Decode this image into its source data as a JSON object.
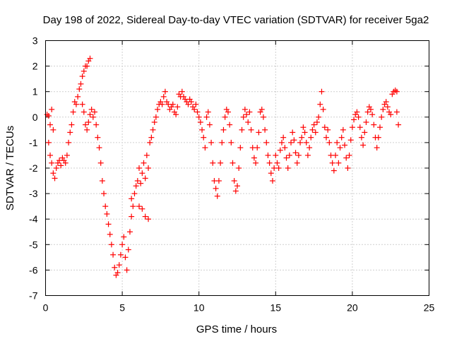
{
  "chart_data": {
    "type": "scatter",
    "title": "Day 198 of 2022, Sidereal Day-to-day VTEC variation (SDTVAR) for receiver 5ga2",
    "xlabel": "GPS time / hours",
    "ylabel": "SDTVAR / TECUs",
    "xlim": [
      0,
      25
    ],
    "ylim": [
      -7,
      3
    ],
    "x_ticks": [
      0,
      5,
      10,
      15,
      20,
      25
    ],
    "y_ticks": [
      -7,
      -6,
      -5,
      -4,
      -3,
      -2,
      -1,
      0,
      1,
      2,
      3
    ],
    "grid": true,
    "marker": "+",
    "color": "#ff0000",
    "series": [
      {
        "name": "SDTVAR",
        "points": [
          [
            0.1,
            0.1
          ],
          [
            0.2,
            0.05
          ],
          [
            0.3,
            -0.3
          ],
          [
            0.4,
            0.3
          ],
          [
            0.5,
            -0.5
          ],
          [
            0.2,
            -1.0
          ],
          [
            0.3,
            -1.5
          ],
          [
            0.4,
            -1.8
          ],
          [
            0.5,
            -2.2
          ],
          [
            0.6,
            -2.4
          ],
          [
            0.7,
            -2.0
          ],
          [
            0.8,
            -1.8
          ],
          [
            0.9,
            -1.7
          ],
          [
            1.0,
            -1.9
          ],
          [
            1.1,
            -1.6
          ],
          [
            1.2,
            -1.7
          ],
          [
            1.3,
            -1.8
          ],
          [
            1.4,
            -1.5
          ],
          [
            1.5,
            -1.0
          ],
          [
            1.6,
            -0.6
          ],
          [
            1.7,
            -0.3
          ],
          [
            1.8,
            0.2
          ],
          [
            1.9,
            0.6
          ],
          [
            2.0,
            0.5
          ],
          [
            2.1,
            0.8
          ],
          [
            2.2,
            1.1
          ],
          [
            2.3,
            1.3
          ],
          [
            2.4,
            1.6
          ],
          [
            2.5,
            1.8
          ],
          [
            2.6,
            2.0
          ],
          [
            2.7,
            2.0
          ],
          [
            2.8,
            2.2
          ],
          [
            2.9,
            2.3
          ],
          [
            2.4,
            0.5
          ],
          [
            2.5,
            0.2
          ],
          [
            2.6,
            -0.3
          ],
          [
            2.7,
            -0.5
          ],
          [
            2.8,
            -0.2
          ],
          [
            2.9,
            0.1
          ],
          [
            3.0,
            0.3
          ],
          [
            3.1,
            0.0
          ],
          [
            3.2,
            0.2
          ],
          [
            3.3,
            -0.3
          ],
          [
            3.4,
            -0.8
          ],
          [
            3.5,
            -1.2
          ],
          [
            3.6,
            -1.8
          ],
          [
            3.7,
            -2.5
          ],
          [
            3.8,
            -3.0
          ],
          [
            3.9,
            -3.5
          ],
          [
            4.0,
            -3.8
          ],
          [
            4.1,
            -4.2
          ],
          [
            4.2,
            -4.6
          ],
          [
            4.3,
            -5.0
          ],
          [
            4.4,
            -5.4
          ],
          [
            4.5,
            -5.9
          ],
          [
            4.6,
            -6.2
          ],
          [
            4.7,
            -6.1
          ],
          [
            4.8,
            -5.8
          ],
          [
            4.9,
            -5.4
          ],
          [
            5.0,
            -5.0
          ],
          [
            5.1,
            -4.7
          ],
          [
            5.2,
            -5.5
          ],
          [
            5.3,
            -6.0
          ],
          [
            5.4,
            -5.2
          ],
          [
            5.5,
            -4.5
          ],
          [
            5.6,
            -3.9
          ],
          [
            5.6,
            -3.2
          ],
          [
            5.7,
            -3.5
          ],
          [
            5.8,
            -3.0
          ],
          [
            5.9,
            -2.7
          ],
          [
            6.0,
            -2.5
          ],
          [
            6.1,
            -2.0
          ],
          [
            6.1,
            -3.5
          ],
          [
            6.2,
            -2.6
          ],
          [
            6.3,
            -2.2
          ],
          [
            6.3,
            -3.6
          ],
          [
            6.4,
            -1.8
          ],
          [
            6.5,
            -2.4
          ],
          [
            6.5,
            -3.9
          ],
          [
            6.6,
            -1.5
          ],
          [
            6.7,
            -2.0
          ],
          [
            6.7,
            -4.0
          ],
          [
            6.8,
            -1.0
          ],
          [
            6.9,
            -0.8
          ],
          [
            7.0,
            -0.5
          ],
          [
            7.1,
            -0.2
          ],
          [
            7.2,
            0.0
          ],
          [
            7.3,
            0.3
          ],
          [
            7.4,
            0.5
          ],
          [
            7.5,
            0.6
          ],
          [
            7.6,
            0.5
          ],
          [
            7.7,
            0.8
          ],
          [
            7.8,
            1.0
          ],
          [
            7.9,
            0.6
          ],
          [
            8.0,
            0.5
          ],
          [
            8.1,
            0.3
          ],
          [
            8.2,
            0.4
          ],
          [
            8.3,
            0.5
          ],
          [
            8.4,
            0.2
          ],
          [
            8.5,
            0.1
          ],
          [
            8.6,
            0.4
          ],
          [
            8.7,
            0.9
          ],
          [
            8.8,
            0.8
          ],
          [
            8.9,
            1.0
          ],
          [
            9.0,
            0.8
          ],
          [
            9.1,
            0.7
          ],
          [
            9.2,
            0.6
          ],
          [
            9.3,
            0.5
          ],
          [
            9.4,
            0.7
          ],
          [
            9.5,
            0.6
          ],
          [
            9.6,
            0.4
          ],
          [
            9.7,
            0.3
          ],
          [
            9.8,
            0.5
          ],
          [
            9.9,
            0.2
          ],
          [
            10.0,
            0.0
          ],
          [
            10.1,
            -0.2
          ],
          [
            10.2,
            -0.5
          ],
          [
            10.3,
            -0.8
          ],
          [
            10.4,
            -1.2
          ],
          [
            10.5,
            0.0
          ],
          [
            10.6,
            0.2
          ],
          [
            10.7,
            -0.3
          ],
          [
            10.8,
            -1.0
          ],
          [
            10.9,
            -1.8
          ],
          [
            11.0,
            -2.5
          ],
          [
            11.1,
            -2.8
          ],
          [
            11.2,
            -3.1
          ],
          [
            11.3,
            -2.5
          ],
          [
            11.4,
            -1.8
          ],
          [
            11.5,
            -1.0
          ],
          [
            11.6,
            -0.5
          ],
          [
            11.7,
            0.0
          ],
          [
            11.8,
            0.3
          ],
          [
            11.9,
            0.2
          ],
          [
            12.0,
            -0.3
          ],
          [
            12.1,
            -1.0
          ],
          [
            12.2,
            -1.8
          ],
          [
            12.3,
            -2.5
          ],
          [
            12.4,
            -2.9
          ],
          [
            12.5,
            -2.7
          ],
          [
            12.6,
            -2.0
          ],
          [
            12.7,
            -1.2
          ],
          [
            12.8,
            -0.5
          ],
          [
            12.9,
            0.0
          ],
          [
            13.0,
            0.3
          ],
          [
            13.1,
            0.1
          ],
          [
            13.2,
            -0.2
          ],
          [
            13.3,
            0.2
          ],
          [
            13.4,
            -0.5
          ],
          [
            13.5,
            -1.2
          ],
          [
            13.6,
            -1.6
          ],
          [
            13.7,
            -1.8
          ],
          [
            13.8,
            -1.2
          ],
          [
            13.9,
            -0.6
          ],
          [
            14.0,
            0.2
          ],
          [
            14.1,
            0.3
          ],
          [
            14.2,
            0.0
          ],
          [
            14.3,
            -0.5
          ],
          [
            14.4,
            -1.0
          ],
          [
            14.5,
            -1.5
          ],
          [
            14.6,
            -1.8
          ],
          [
            14.7,
            -2.2
          ],
          [
            14.8,
            -2.5
          ],
          [
            14.9,
            -2.0
          ],
          [
            15.0,
            -1.5
          ],
          [
            15.1,
            -1.8
          ],
          [
            15.2,
            -2.0
          ],
          [
            15.3,
            -1.3
          ],
          [
            15.4,
            -1.0
          ],
          [
            15.5,
            -0.8
          ],
          [
            15.6,
            -1.2
          ],
          [
            15.7,
            -1.6
          ],
          [
            15.8,
            -2.0
          ],
          [
            15.9,
            -1.5
          ],
          [
            16.0,
            -1.0
          ],
          [
            16.1,
            -0.6
          ],
          [
            16.2,
            -0.9
          ],
          [
            16.3,
            -1.4
          ],
          [
            16.4,
            -1.8
          ],
          [
            16.5,
            -1.5
          ],
          [
            16.6,
            -1.0
          ],
          [
            16.7,
            -0.8
          ],
          [
            16.8,
            -0.4
          ],
          [
            16.9,
            -0.6
          ],
          [
            17.0,
            -1.0
          ],
          [
            17.1,
            -1.5
          ],
          [
            17.2,
            -1.2
          ],
          [
            17.3,
            -0.8
          ],
          [
            17.4,
            -0.5
          ],
          [
            17.5,
            -0.3
          ],
          [
            17.6,
            -0.6
          ],
          [
            17.7,
            -0.2
          ],
          [
            17.8,
            0.0
          ],
          [
            17.9,
            0.5
          ],
          [
            18.0,
            1.0
          ],
          [
            18.1,
            0.3
          ],
          [
            18.2,
            -0.4
          ],
          [
            18.3,
            -0.8
          ],
          [
            18.4,
            -0.5
          ],
          [
            18.5,
            -1.0
          ],
          [
            18.6,
            -1.5
          ],
          [
            18.7,
            -1.8
          ],
          [
            18.8,
            -2.1
          ],
          [
            18.9,
            -1.5
          ],
          [
            19.0,
            -1.0
          ],
          [
            19.1,
            -1.8
          ],
          [
            19.2,
            -1.2
          ],
          [
            19.3,
            -0.8
          ],
          [
            19.4,
            -0.5
          ],
          [
            19.5,
            -1.1
          ],
          [
            19.6,
            -1.6
          ],
          [
            19.7,
            -2.0
          ],
          [
            19.8,
            -1.5
          ],
          [
            19.9,
            -0.9
          ],
          [
            20.0,
            -0.4
          ],
          [
            20.1,
            -0.1
          ],
          [
            20.2,
            0.1
          ],
          [
            20.3,
            0.2
          ],
          [
            20.4,
            0.0
          ],
          [
            20.5,
            -0.4
          ],
          [
            20.6,
            -0.8
          ],
          [
            20.7,
            -1.1
          ],
          [
            20.8,
            -0.6
          ],
          [
            20.9,
            -0.2
          ],
          [
            21.0,
            0.2
          ],
          [
            21.1,
            0.4
          ],
          [
            21.2,
            0.3
          ],
          [
            21.3,
            0.1
          ],
          [
            21.4,
            -0.3
          ],
          [
            21.5,
            -0.8
          ],
          [
            21.6,
            -1.2
          ],
          [
            21.7,
            -0.8
          ],
          [
            21.8,
            -0.4
          ],
          [
            21.9,
            0.0
          ],
          [
            22.0,
            0.3
          ],
          [
            22.1,
            0.5
          ],
          [
            22.2,
            0.6
          ],
          [
            22.3,
            0.4
          ],
          [
            22.4,
            0.2
          ],
          [
            22.5,
            0.1
          ],
          [
            22.6,
            0.9
          ],
          [
            22.7,
            1.0
          ],
          [
            22.8,
            1.05
          ],
          [
            22.9,
            1.0
          ],
          [
            22.9,
            0.2
          ],
          [
            23.0,
            -0.3
          ]
        ]
      }
    ]
  }
}
